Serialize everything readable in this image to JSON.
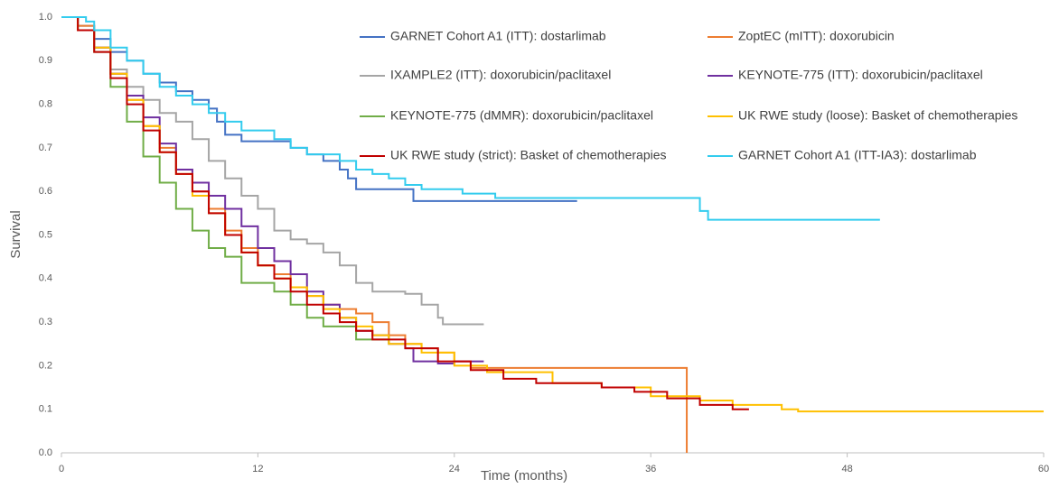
{
  "chart_data": {
    "type": "step",
    "x_label": "Time (months)",
    "y_label": "Survival",
    "xlim": [
      0,
      60
    ],
    "xticks": [
      0,
      12,
      24,
      36,
      48,
      60
    ],
    "ylim": [
      0,
      1
    ],
    "yticks": [
      {
        "value": 0,
        "label": "0.0"
      },
      0.1,
      0.2,
      0.3,
      0.4,
      0.5,
      0.6,
      0.7,
      0.8,
      0.9,
      {
        "value": 1,
        "label": "1.0"
      }
    ],
    "grid": false,
    "legend": "top",
    "series": [
      {
        "name": "GARNET Cohort A1 (ITT): dostarlimab",
        "color": "#4472c4",
        "x": [
          0,
          1,
          2,
          3,
          4,
          5,
          6,
          7,
          8,
          9,
          9.5,
          10,
          11,
          14,
          15,
          16,
          17,
          17.5,
          18,
          21.5,
          31.5
        ],
        "values": [
          1,
          0.98,
          0.95,
          0.92,
          0.9,
          0.87,
          0.85,
          0.83,
          0.81,
          0.79,
          0.76,
          0.73,
          0.715,
          0.7,
          0.685,
          0.67,
          0.65,
          0.63,
          0.605,
          0.578,
          0.578
        ]
      },
      {
        "name": "ZoptEC (mITT): doxorubicin",
        "color": "#ed7d31",
        "x": [
          0,
          1,
          2,
          3,
          4,
          5,
          6,
          7,
          8,
          9,
          10,
          11,
          12,
          13,
          14,
          15,
          16,
          17,
          18,
          19,
          20,
          21,
          22,
          23,
          24,
          25,
          37.8,
          38.2
        ],
        "values": [
          1,
          0.98,
          0.93,
          0.87,
          0.81,
          0.75,
          0.7,
          0.65,
          0.6,
          0.56,
          0.51,
          0.47,
          0.43,
          0.41,
          0.38,
          0.36,
          0.34,
          0.33,
          0.32,
          0.3,
          0.27,
          0.25,
          0.24,
          0.23,
          0.21,
          0.195,
          0.195,
          0
        ]
      },
      {
        "name": "IXAMPLE2 (ITT): doxorubicin/paclitaxel",
        "color": "#a5a5a5",
        "x": [
          0,
          1,
          2,
          3,
          4,
          5,
          6,
          7,
          8,
          9,
          10,
          11,
          12,
          13,
          14,
          15,
          16,
          17,
          18,
          19,
          21,
          22,
          23,
          23.3,
          25.8
        ],
        "values": [
          1,
          0.97,
          0.93,
          0.88,
          0.84,
          0.81,
          0.78,
          0.76,
          0.72,
          0.67,
          0.63,
          0.59,
          0.56,
          0.51,
          0.49,
          0.48,
          0.46,
          0.43,
          0.39,
          0.37,
          0.365,
          0.34,
          0.31,
          0.295,
          0.295
        ]
      },
      {
        "name": "KEYNOTE-775 (ITT): doxorubicin/paclitaxel",
        "color": "#7030a0",
        "x": [
          0,
          1,
          2,
          3,
          4,
          5,
          6,
          7,
          8,
          9,
          10,
          11,
          12,
          13,
          14,
          15,
          16,
          17,
          18,
          19,
          20,
          21,
          21.5,
          23,
          24,
          25.8
        ],
        "values": [
          1,
          0.97,
          0.93,
          0.87,
          0.82,
          0.77,
          0.71,
          0.65,
          0.62,
          0.59,
          0.56,
          0.52,
          0.47,
          0.44,
          0.41,
          0.37,
          0.34,
          0.31,
          0.28,
          0.27,
          0.25,
          0.24,
          0.21,
          0.205,
          0.21,
          0.21
        ]
      },
      {
        "name": "KEYNOTE-775 (dMMR): doxorubicin/paclitaxel",
        "color": "#70ad47",
        "x": [
          0,
          1,
          2,
          3,
          4,
          5,
          6,
          7,
          8,
          9,
          10,
          11,
          13,
          14,
          15,
          16,
          17,
          18,
          19,
          20
        ],
        "values": [
          1,
          0.97,
          0.92,
          0.84,
          0.76,
          0.68,
          0.62,
          0.56,
          0.51,
          0.47,
          0.45,
          0.39,
          0.37,
          0.34,
          0.31,
          0.29,
          0.29,
          0.26,
          0.26,
          0.25
        ]
      },
      {
        "name": "UK RWE study (loose): Basket of chemotherapies",
        "color": "#ffc000",
        "x": [
          0,
          1,
          2,
          3,
          4,
          5,
          6,
          7,
          8,
          9,
          10,
          11,
          12,
          13,
          14,
          15,
          16,
          17,
          18,
          19,
          20,
          22,
          24,
          26,
          30,
          33,
          36,
          39,
          41,
          44,
          45,
          60
        ],
        "values": [
          1,
          0.97,
          0.93,
          0.87,
          0.81,
          0.75,
          0.69,
          0.64,
          0.59,
          0.55,
          0.5,
          0.46,
          0.43,
          0.4,
          0.38,
          0.36,
          0.33,
          0.31,
          0.29,
          0.27,
          0.25,
          0.23,
          0.2,
          0.185,
          0.16,
          0.15,
          0.13,
          0.12,
          0.11,
          0.1,
          0.095,
          0.095
        ]
      },
      {
        "name": "UK RWE study (strict): Basket of chemotherapies",
        "color": "#c00000",
        "x": [
          0,
          1,
          2,
          3,
          4,
          5,
          6,
          7,
          8,
          9,
          10,
          11,
          12,
          13,
          14,
          15,
          16,
          17,
          18,
          19,
          21,
          23,
          25,
          27,
          29,
          33,
          35,
          37,
          39,
          41,
          42
        ],
        "values": [
          1,
          0.97,
          0.92,
          0.86,
          0.8,
          0.74,
          0.69,
          0.64,
          0.6,
          0.55,
          0.5,
          0.46,
          0.43,
          0.4,
          0.37,
          0.34,
          0.32,
          0.3,
          0.28,
          0.26,
          0.24,
          0.21,
          0.19,
          0.17,
          0.16,
          0.15,
          0.14,
          0.125,
          0.11,
          0.1,
          0.1
        ]
      },
      {
        "name": "GARNET Cohort A1 (ITT-IA3): dostarlimab",
        "color": "#33ccee",
        "x": [
          0,
          1.5,
          2,
          3,
          4,
          5,
          6,
          7,
          8,
          9,
          10,
          11,
          13,
          14,
          15,
          17,
          18,
          19,
          20,
          21,
          22,
          24.5,
          26.5,
          38.5,
          39,
          39.5,
          50
        ],
        "values": [
          1,
          0.99,
          0.97,
          0.93,
          0.9,
          0.87,
          0.84,
          0.82,
          0.8,
          0.78,
          0.76,
          0.74,
          0.72,
          0.7,
          0.685,
          0.67,
          0.65,
          0.64,
          0.63,
          0.615,
          0.605,
          0.595,
          0.585,
          0.585,
          0.555,
          0.535,
          0.535
        ]
      }
    ]
  }
}
